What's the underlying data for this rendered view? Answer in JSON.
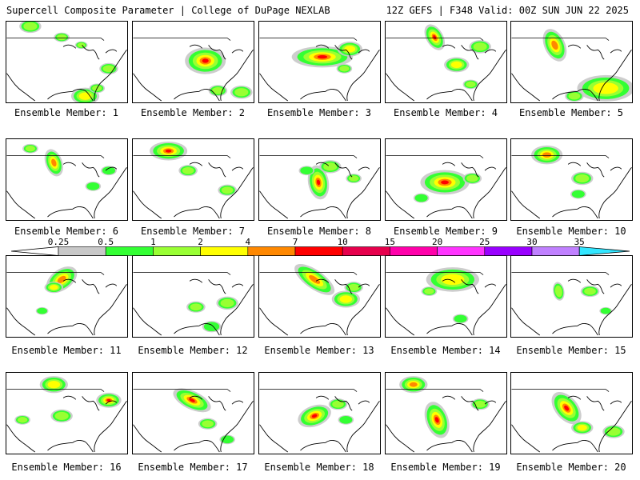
{
  "header": {
    "left_title": "Supercell Composite Parameter | College of DuPage NEXLAB",
    "right_title": "12Z GEFS | F348 Valid: 00Z SUN JUN 22 2025"
  },
  "legend": {
    "labels": [
      "0.25",
      "0.5",
      "1",
      "2",
      "4",
      "7",
      "10",
      "15",
      "20",
      "25",
      "30",
      "35"
    ],
    "colors": [
      "#c8c8c8",
      "#33ff33",
      "#99ff33",
      "#ffff00",
      "#ff8800",
      "#ff0000",
      "#e6004c",
      "#ff00aa",
      "#ff33ff",
      "#9900ff",
      "#c080ff",
      "#33e6ff"
    ]
  },
  "members": [
    {
      "label": "Ensemble Member: 1",
      "index": 1
    },
    {
      "label": "Ensemble Member: 2",
      "index": 2
    },
    {
      "label": "Ensemble Member: 3",
      "index": 3
    },
    {
      "label": "Ensemble Member: 4",
      "index": 4
    },
    {
      "label": "Ensemble Member: 5",
      "index": 5
    },
    {
      "label": "Ensemble Member: 6",
      "index": 6
    },
    {
      "label": "Ensemble Member: 7",
      "index": 7
    },
    {
      "label": "Ensemble Member: 8",
      "index": 8
    },
    {
      "label": "Ensemble Member: 9",
      "index": 9
    },
    {
      "label": "Ensemble Member: 10",
      "index": 10
    },
    {
      "label": "Ensemble Member: 11",
      "index": 11
    },
    {
      "label": "Ensemble Member: 12",
      "index": 12
    },
    {
      "label": "Ensemble Member: 13",
      "index": 13
    },
    {
      "label": "Ensemble Member: 14",
      "index": 14
    },
    {
      "label": "Ensemble Member: 15",
      "index": 15
    },
    {
      "label": "Ensemble Member: 16",
      "index": 16
    },
    {
      "label": "Ensemble Member: 17",
      "index": 17
    },
    {
      "label": "Ensemble Member: 18",
      "index": 18
    },
    {
      "label": "Ensemble Member: 19",
      "index": 19
    },
    {
      "label": "Ensemble Member: 20",
      "index": 20
    }
  ]
}
